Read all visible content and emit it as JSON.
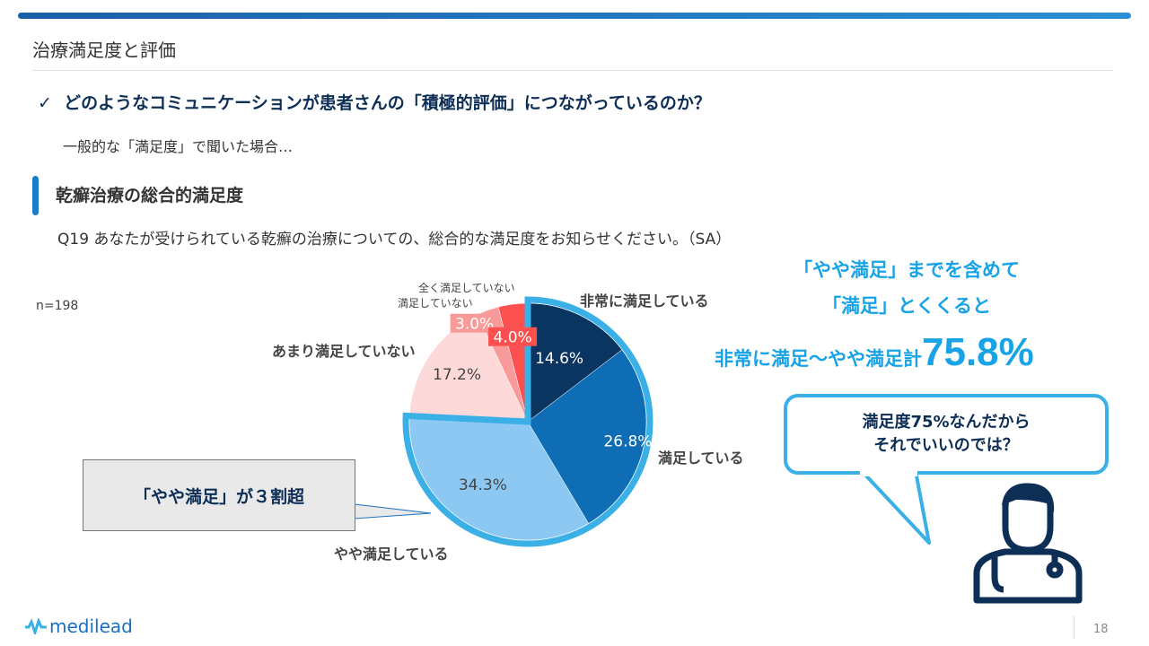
{
  "header": {
    "title": "治療満足度と評価"
  },
  "question_heading": {
    "check_icon": "✓",
    "text": "どのようなコミュニケーションが患者さんの「積極的評価」につながっているのか？"
  },
  "subtitle": "一般的な「満足度」で聞いた場合…",
  "section": {
    "title": "乾癬治療の総合的満足度",
    "question": "Q19  あなたが受けられている乾癬の治療についての、総合的な満足度をお知らせください。（SA）",
    "n": "n=198"
  },
  "chart_data": {
    "type": "pie",
    "title": "",
    "start": "top",
    "direction": "clockwise",
    "categories": [
      "非常に満足している",
      "満足している",
      "やや満足している",
      "あまり満足していない",
      "満足していない",
      "全く満足していない"
    ],
    "values": [
      14.6,
      26.8,
      34.3,
      17.2,
      3.0,
      4.0
    ],
    "data_labels": [
      "14.6%",
      "26.8%",
      "34.3%",
      "17.2%",
      "3.0%",
      "4.0%"
    ],
    "colors": [
      "#0a3560",
      "#0f6db5",
      "#8cc8f2",
      "#fdd9d9",
      "#f99a9a",
      "#fc5050"
    ],
    "highlight_group": {
      "categories": [
        "非常に満足している",
        "満足している",
        "やや満足している"
      ],
      "outline_color": "#3bb0e6"
    }
  },
  "highlight": {
    "line1": "「やや満足」までを含めて",
    "line2": "「満足」とくくると",
    "line3_prefix": "非常に満足～やや満足計",
    "line3_value": "75.8%"
  },
  "callout": "「やや満足」が３割超",
  "speech_bubble": {
    "line1": "満足度75%なんだから",
    "line2": "それでいいのでは？"
  },
  "footer": {
    "logo": "medilead",
    "page": "18"
  }
}
